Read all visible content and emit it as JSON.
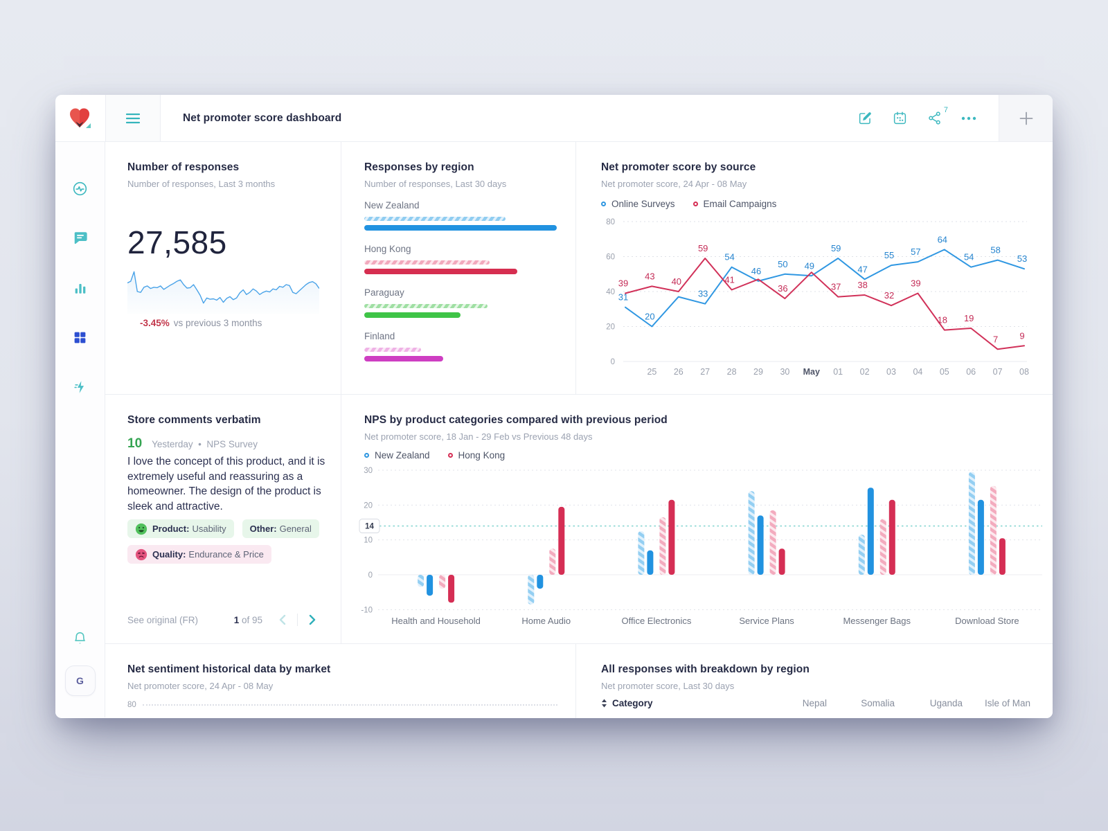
{
  "header": {
    "title": "Net promoter score dashboard",
    "share_badge": "7",
    "icons": [
      "edit-icon",
      "calendar-icon",
      "share-icon",
      "more-icon",
      "plus-icon"
    ]
  },
  "sidebar": {
    "items": [
      {
        "icon": "activity-icon",
        "active": false
      },
      {
        "icon": "chat-icon",
        "active": false
      },
      {
        "icon": "bar-chart-icon",
        "active": false
      },
      {
        "icon": "dashboard-grid-icon",
        "active": true
      },
      {
        "icon": "flash-icon",
        "active": false
      }
    ],
    "bottom": {
      "bell_icon": "bell-icon",
      "avatar_initial": "G"
    },
    "accent_active": "#2d4fd1",
    "accent_teal": "#3cb8bf"
  },
  "cards": {
    "responses": {
      "title": "Number of responses",
      "subtitle": "Number of responses, Last 3 months",
      "big_number": "27,585",
      "delta": "-3.45%",
      "delta_note": "vs previous 3 months"
    },
    "regions": {
      "title": "Responses by region",
      "subtitle": "Number of responses, Last 30 days"
    },
    "source": {
      "title": "Net promoter score by source",
      "subtitle": "Net promoter score, 24 Apr - 08 May",
      "legend": [
        "Online Surveys",
        "Email Campaigns"
      ]
    },
    "comments": {
      "title": "Store comments verbatim",
      "score": "10",
      "score_meta": "Yesterday  •  NPS Survey",
      "comment_lines": [
        "I love the concept of this product, and it is",
        "extremely useful and reassuring as a",
        "homeowner. The design of the product is",
        "sleek and attractive."
      ],
      "tags": [
        {
          "label": "Product:",
          "value": "Usability",
          "tone": "green",
          "emoji": "happy-face-icon"
        },
        {
          "label": "Other:",
          "value": "General",
          "tone": "green",
          "emoji": null
        },
        {
          "label": "Quality:",
          "value": "Endurance & Price",
          "tone": "pink",
          "emoji": "sad-face-icon"
        }
      ],
      "footer_link": "See original (FR)",
      "page_current": "1",
      "page_of": "of 95"
    },
    "categories": {
      "title": "NPS by product categories compared with previous period",
      "subtitle": "Net promoter score, 18 Jan - 29 Feb vs Previous 48 days",
      "legend": [
        "New Zealand",
        "Hong Kong"
      ]
    },
    "sentiment": {
      "title": "Net sentiment historical data by market",
      "subtitle": "Net promoter score, 24 Apr - 08 May",
      "first_tick": "80"
    },
    "breakdown": {
      "title": "All responses with breakdown by region",
      "subtitle": "Net promoter score, Last 30 days",
      "category_header": "Category",
      "columns": [
        "Nepal",
        "Somalia",
        "Uganda",
        "Isle of Man"
      ]
    }
  },
  "chart_data": [
    {
      "id": "responses-sparkline",
      "type": "line",
      "title": "Number of responses trend, Last 3 months",
      "color": "#4aa3e8",
      "values": [
        62,
        66,
        88,
        42,
        40,
        52,
        55,
        49,
        52,
        51,
        55,
        47,
        52,
        57,
        61,
        66,
        69,
        58,
        50,
        51,
        58,
        46,
        33,
        15,
        27,
        24,
        25,
        22,
        28,
        17,
        26,
        30,
        23,
        27,
        39,
        46,
        35,
        40,
        48,
        43,
        35,
        40,
        43,
        41,
        48,
        46,
        54,
        52,
        58,
        56,
        40,
        37,
        44,
        51,
        58,
        63,
        65,
        60,
        49
      ]
    },
    {
      "id": "responses-by-region",
      "type": "bar",
      "title": "Responses by region, Last 30 days",
      "categories": [
        "New Zealand",
        "Hong Kong",
        "Paraguay",
        "Finland"
      ],
      "series": [
        {
          "name": "Previous period",
          "values": [
            73.5,
            65,
            64,
            29.5
          ]
        },
        {
          "name": "Current period",
          "values": [
            100,
            79.5,
            50,
            41
          ]
        }
      ],
      "unit": "percent-of-max-width",
      "palette": [
        {
          "solid": "#2192e0",
          "stripe_dark": "#90cdf1",
          "stripe_light": "#e0f0fb"
        },
        {
          "solid": "#d62e50",
          "stripe_dark": "#f2a9bd",
          "stripe_light": "#fce5eb"
        },
        {
          "solid": "#3fc447",
          "stripe_dark": "#9fdfa3",
          "stripe_light": "#e4f7e5"
        },
        {
          "solid": "#ce3ec2",
          "stripe_dark": "#efb2e5",
          "stripe_light": "#fae8f7"
        }
      ]
    },
    {
      "id": "nps-by-source",
      "type": "line",
      "title": "Net promoter score by source, 24 Apr - 08 May",
      "x_ticks": [
        "",
        "25",
        "26",
        "27",
        "28",
        "29",
        "30",
        "May",
        "01",
        "02",
        "03",
        "04",
        "05",
        "06",
        "07",
        "08"
      ],
      "bold_x_tick": "May",
      "yticks": [
        0,
        20,
        40,
        60,
        80
      ],
      "ylim": [
        0,
        80
      ],
      "series": [
        {
          "name": "Online Surveys",
          "color": "#2f97e2",
          "label_color": "#2584cf",
          "values": [
            31,
            20,
            37,
            33,
            54,
            46,
            50,
            49,
            59,
            47,
            55,
            57,
            64,
            54,
            58,
            53
          ],
          "labels": [
            "31",
            "20",
            "",
            "33",
            "54",
            "46",
            "50",
            "49",
            "59",
            "47",
            "55",
            "57",
            "64",
            "54",
            "58",
            "53"
          ]
        },
        {
          "name": "Email Campaigns",
          "color": "#d13159",
          "label_color": "#c42b56",
          "values": [
            39,
            43,
            40,
            59,
            41,
            47,
            36,
            51,
            37,
            38,
            32,
            39,
            18,
            19,
            7,
            9
          ],
          "labels": [
            "39",
            "43",
            "40",
            "59",
            "41",
            "",
            "36",
            "",
            "37",
            "38",
            "32",
            "39",
            "18",
            "19",
            "7",
            "9"
          ]
        }
      ]
    },
    {
      "id": "nps-by-category",
      "type": "bar",
      "title": "NPS by product categories compared with previous period",
      "categories": [
        "Health and Household",
        "Home Audio",
        "Office Electronics",
        "Service Plans",
        "Messenger Bags",
        "Download Store"
      ],
      "series": [
        {
          "name": "New Zealand previous",
          "style": "hatched-blue",
          "values": [
            -3.5,
            -8.5,
            12.5,
            24,
            11.5,
            29.5
          ]
        },
        {
          "name": "New Zealand",
          "style": "solid-blue",
          "color": "#2192e0",
          "values": [
            -6,
            -4,
            7,
            17,
            25,
            21.5
          ]
        },
        {
          "name": "Hong Kong previous",
          "style": "hatched-pink",
          "values": [
            -4,
            7.5,
            16.5,
            18.5,
            16,
            25.5
          ]
        },
        {
          "name": "Hong Kong",
          "style": "solid-red",
          "color": "#d52e54",
          "values": [
            -8,
            19.5,
            21.5,
            7.5,
            21.5,
            10.5
          ]
        }
      ],
      "yticks": [
        -10,
        0,
        10,
        20,
        30
      ],
      "ylim": [
        -10,
        30
      ],
      "reference_line": {
        "value": 14,
        "label": "14",
        "color": "#74cfca"
      }
    },
    {
      "id": "net-sentiment-historical",
      "type": "line",
      "title": "Net sentiment historical data by market (clipped)",
      "yticks": [
        80
      ],
      "series": []
    }
  ]
}
